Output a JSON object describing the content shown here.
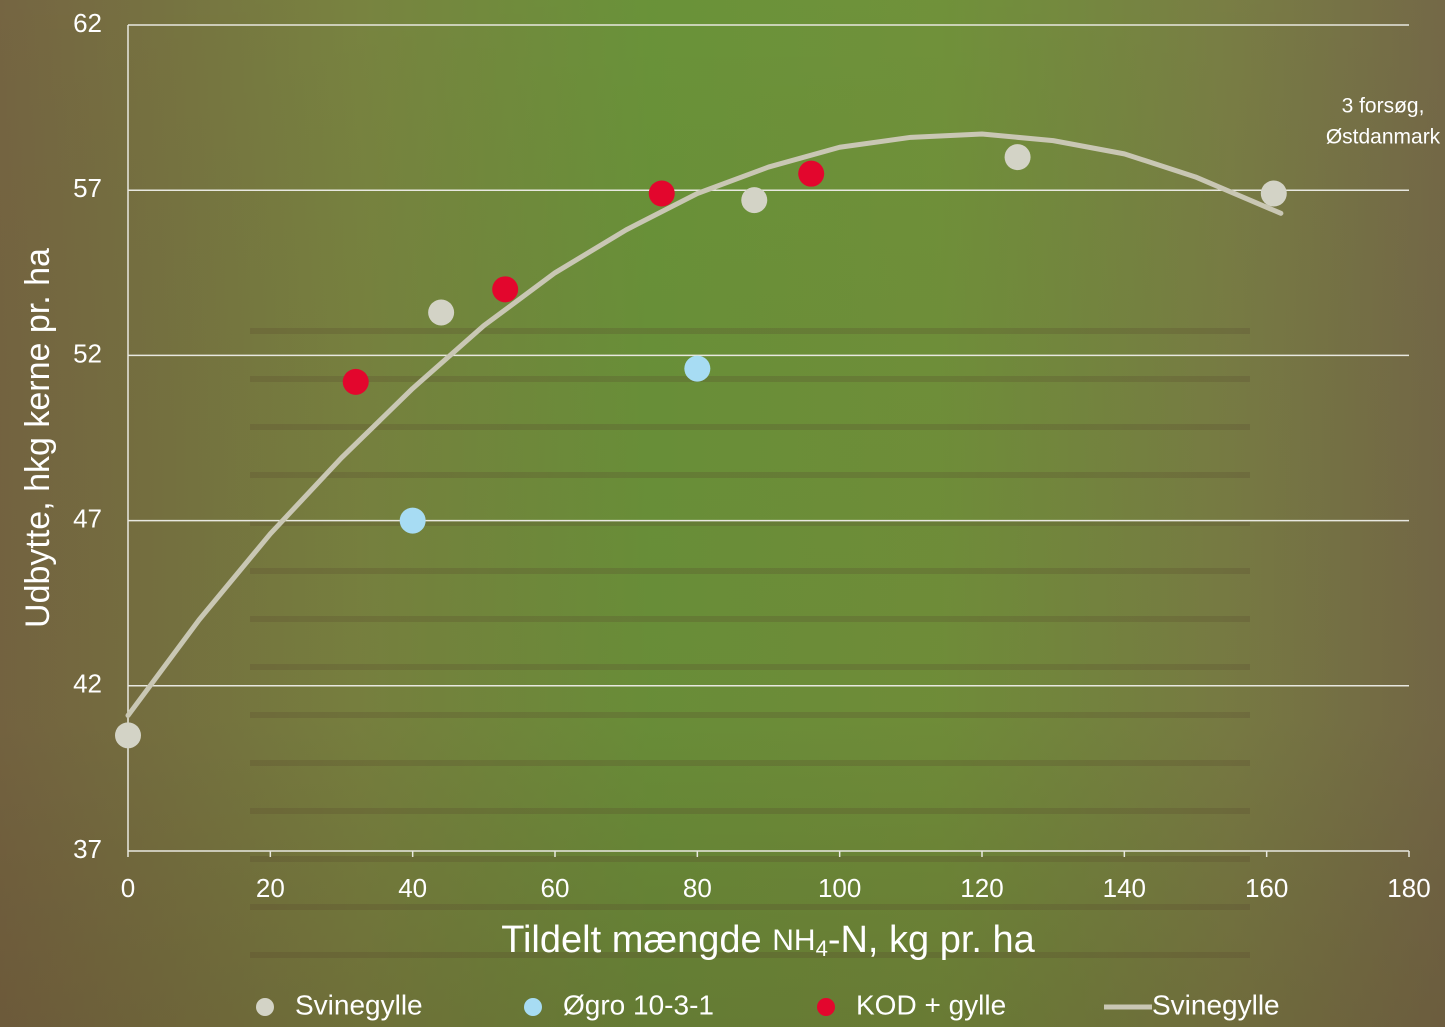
{
  "chart_data": {
    "type": "scatter",
    "x_label": [
      "Tildelt mængde ",
      "NH",
      "4",
      "-N, kg pr. ha"
    ],
    "y_label": "Udbytte, hkg kerne pr. ha",
    "annotation": [
      "3 forsøg,",
      "Østdanmark"
    ],
    "xlim": [
      0,
      180
    ],
    "xticks": [
      0,
      20,
      40,
      60,
      80,
      100,
      120,
      140,
      160,
      180
    ],
    "ylim": [
      37,
      62
    ],
    "yticks": [
      37,
      42,
      47,
      52,
      57,
      62
    ],
    "grid": true,
    "legend": "bottom",
    "series": [
      {
        "name": "Svinegylle",
        "kind": "scatter",
        "color": "#d3d3c6",
        "x": [
          0,
          44,
          88,
          125,
          161
        ],
        "values": [
          40.5,
          53.3,
          56.7,
          58.0,
          56.9
        ]
      },
      {
        "name": "Øgro 10-3-1",
        "kind": "scatter",
        "color": "#a7dcf3",
        "x": [
          40,
          80
        ],
        "values": [
          47.0,
          51.6
        ]
      },
      {
        "name": "KOD + gylle",
        "kind": "scatter",
        "color": "#e3062d",
        "x": [
          32,
          53,
          75,
          96
        ],
        "values": [
          51.2,
          54.0,
          56.9,
          57.5
        ]
      },
      {
        "name": "Svinegylle",
        "kind": "line",
        "color": "#c9c7b4",
        "x": [
          0,
          10,
          20,
          30,
          40,
          50,
          60,
          70,
          80,
          90,
          100,
          110,
          120,
          130,
          140,
          150,
          162
        ],
        "values": [
          41.1,
          44.0,
          46.6,
          48.9,
          51.0,
          52.9,
          54.5,
          55.8,
          56.9,
          57.7,
          58.3,
          58.6,
          58.7,
          58.5,
          58.1,
          57.4,
          56.3
        ]
      }
    ]
  }
}
